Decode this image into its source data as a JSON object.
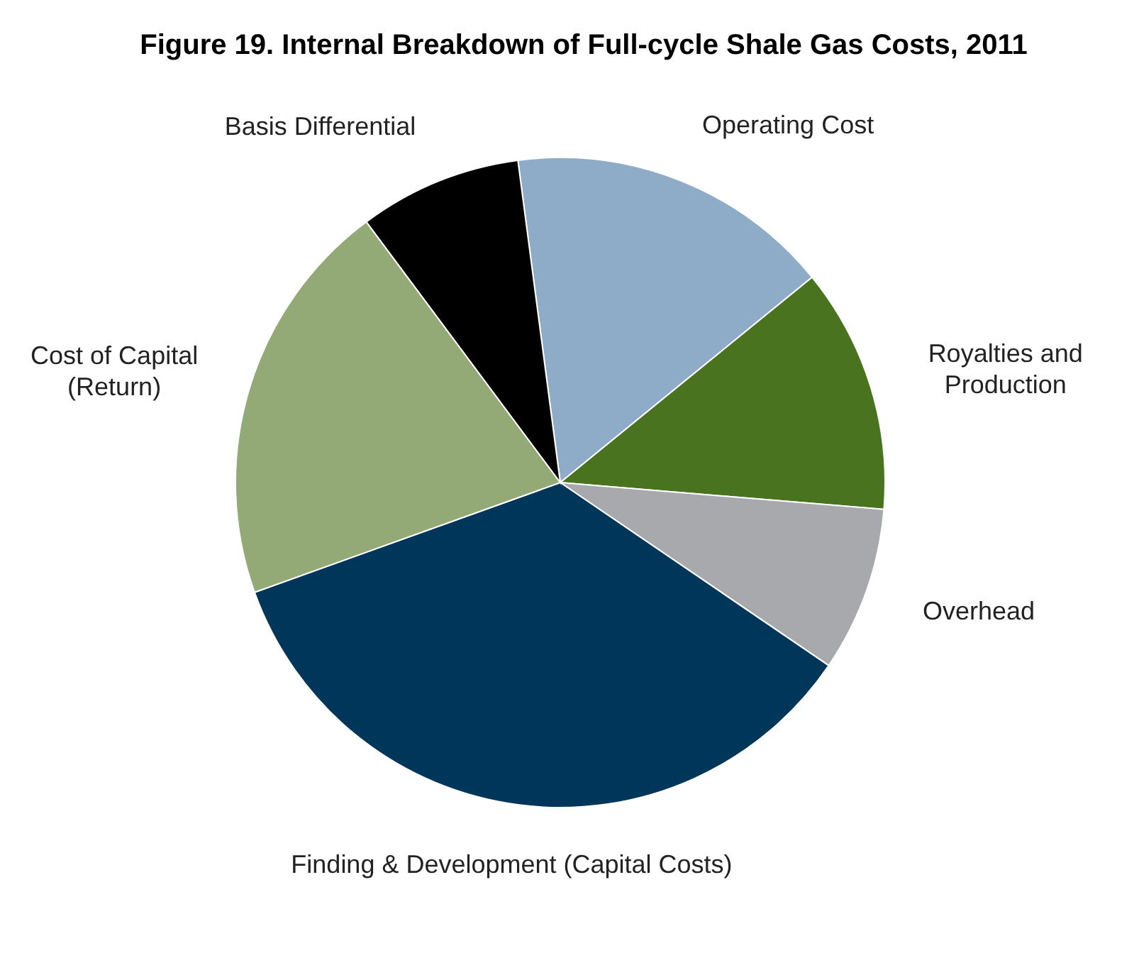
{
  "chart_data": {
    "type": "pie",
    "title": "Figure 19. Internal Breakdown of Full-cycle Shale Gas Costs, 2011",
    "categories": [
      "Operating Cost",
      "Royalties and\nProduction",
      "Overhead",
      "Finding & Development (Capital Costs)",
      "Cost of Capital\n(Return)",
      "Basis Differential"
    ],
    "values": [
      16.2,
      12.2,
      8.2,
      35,
      20.3,
      8.1
    ],
    "colors": [
      "#8eacc8",
      "#4a7320",
      "#a7a9ac",
      "#003659",
      "#93aa76",
      "#000000"
    ]
  }
}
